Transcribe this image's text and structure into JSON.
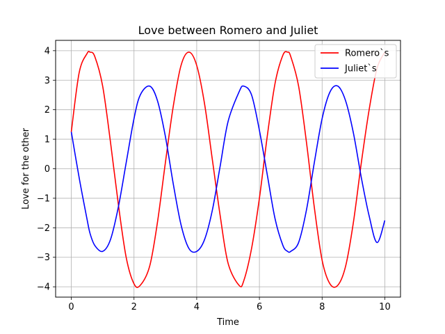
{
  "chart_data": {
    "type": "line",
    "title": "Love between Romero and Juliet",
    "xlabel": "Time",
    "ylabel": "Love for the other",
    "xlim": [
      -0.5,
      10.5
    ],
    "ylim": [
      -4.35,
      4.35
    ],
    "xticks": [
      0,
      2,
      4,
      6,
      8,
      10
    ],
    "yticks": [
      -4,
      -3,
      -2,
      -1,
      0,
      1,
      2,
      3,
      4
    ],
    "ytick_labels": [
      "−4",
      "−3",
      "−2",
      "−1",
      "0",
      "1",
      "2",
      "3",
      "4"
    ],
    "grid": true,
    "legend_position": "upper right",
    "x": [
      0,
      0.25,
      0.5,
      0.6,
      0.75,
      1,
      1.25,
      1.5,
      1.75,
      2,
      2.2,
      2.5,
      2.75,
      3,
      3.25,
      3.5,
      3.75,
      4,
      4.25,
      4.5,
      4.75,
      5,
      5.35,
      5.5,
      5.75,
      6,
      6.25,
      6.5,
      6.75,
      6.9,
      7,
      7.25,
      7.5,
      7.75,
      8,
      8.25,
      8.5,
      8.75,
      9,
      9.25,
      9.5,
      9.75,
      10
    ],
    "series": [
      {
        "name": "Romero`s",
        "color": "#ff0000",
        "values": [
          1.25,
          3.25,
          3.9,
          3.95,
          3.8,
          2.8,
          0.9,
          -1.2,
          -3.0,
          -3.9,
          -3.95,
          -3.3,
          -1.8,
          0.2,
          2.1,
          3.5,
          3.95,
          3.5,
          2.2,
          0.3,
          -1.6,
          -3.2,
          -3.95,
          -3.8,
          -2.7,
          -1.0,
          1.1,
          2.9,
          3.85,
          3.95,
          3.8,
          2.8,
          0.9,
          -1.3,
          -3.1,
          -3.9,
          -3.95,
          -3.3,
          -1.8,
          0.2,
          2.0,
          3.4,
          3.95
        ]
      },
      {
        "name": "Juliet`s",
        "color": "#0000ff",
        "values": [
          1.25,
          -0.3,
          -1.7,
          -2.2,
          -2.6,
          -2.8,
          -2.4,
          -1.3,
          0.2,
          1.7,
          2.5,
          2.8,
          2.3,
          1.1,
          -0.5,
          -1.9,
          -2.7,
          -2.8,
          -2.4,
          -1.4,
          0.1,
          1.6,
          2.6,
          2.8,
          2.5,
          1.3,
          -0.2,
          -1.7,
          -2.6,
          -2.8,
          -2.8,
          -2.5,
          -1.4,
          0.2,
          1.7,
          2.6,
          2.8,
          2.3,
          1.2,
          -0.3,
          -1.6,
          -2.5,
          -1.75
        ]
      }
    ]
  }
}
